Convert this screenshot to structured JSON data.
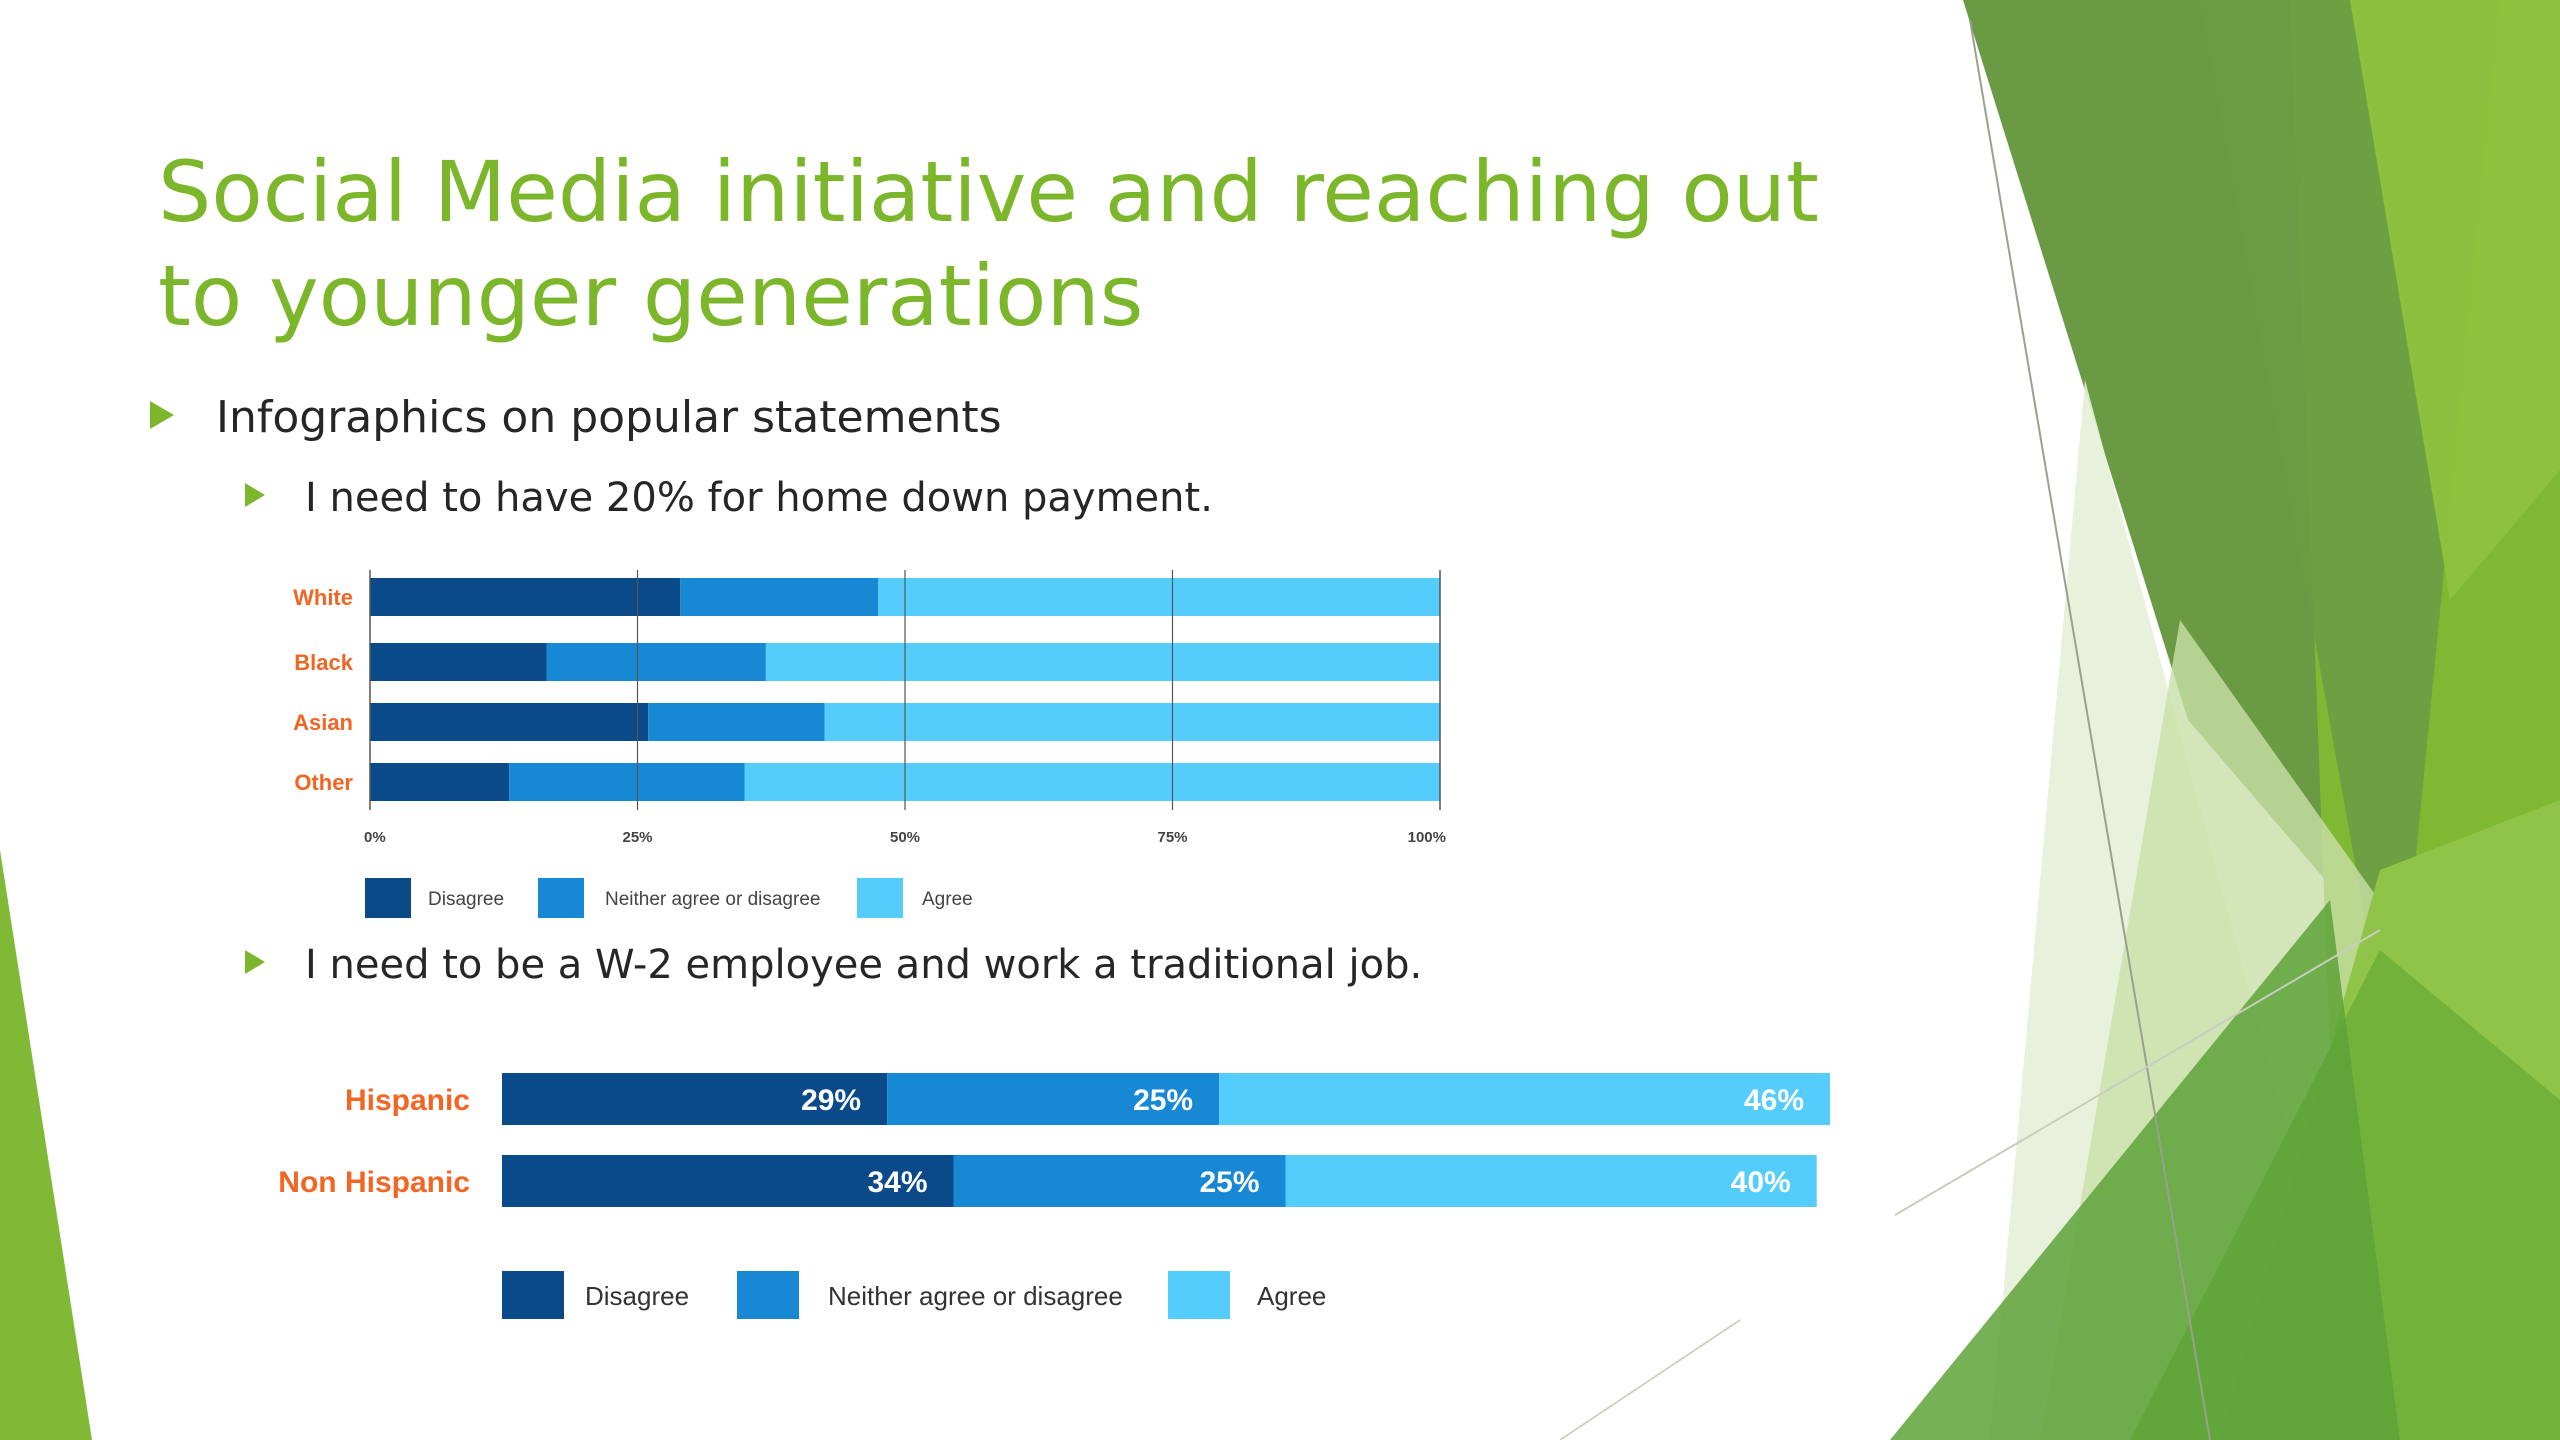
{
  "slide": {
    "title": "Social Media initiative and reaching out to younger generations",
    "bullets": {
      "main": "Infographics on popular statements",
      "sub1": "I need to have 20% for home down payment.",
      "sub2": "I need to be a W-2 employee and work a traditional job."
    }
  },
  "colors": {
    "accent": "#7cb62b",
    "label_orange": "#f26522",
    "disagree": "#0b4a88",
    "neither": "#1788d4",
    "agree": "#54cdfc"
  },
  "chart_data": [
    {
      "type": "bar",
      "orientation": "horizontal",
      "stacked": true,
      "categories": [
        "White",
        "Black",
        "Asian",
        "Other"
      ],
      "series": [
        {
          "name": "Disagree",
          "values": [
            29,
            16.5,
            26,
            13
          ]
        },
        {
          "name": "Neither agree or disagree",
          "values": [
            18.5,
            20.5,
            16.5,
            22
          ]
        },
        {
          "name": "Agree",
          "values": [
            52.5,
            63,
            57.5,
            65
          ]
        }
      ],
      "xticks": [
        "0%",
        "25%",
        "50%",
        "75%",
        "100%"
      ],
      "xlim": [
        0,
        100
      ],
      "grid": true,
      "legend_position": "bottom-left",
      "title": "",
      "xlabel": "",
      "ylabel": ""
    },
    {
      "type": "bar",
      "orientation": "horizontal",
      "stacked": true,
      "categories": [
        "Hispanic",
        "Non Hispanic"
      ],
      "series": [
        {
          "name": "Disagree",
          "values": [
            29,
            34
          ],
          "labels": [
            "29%",
            "34%"
          ]
        },
        {
          "name": "Neither agree or disagree",
          "values": [
            25,
            25
          ],
          "labels": [
            "25%",
            "25%"
          ]
        },
        {
          "name": "Agree",
          "values": [
            46,
            40
          ],
          "labels": [
            "46%",
            "40%"
          ]
        }
      ],
      "xlim": [
        0,
        100
      ],
      "grid": false,
      "legend_position": "bottom-left",
      "title": "",
      "xlabel": "",
      "ylabel": ""
    }
  ]
}
